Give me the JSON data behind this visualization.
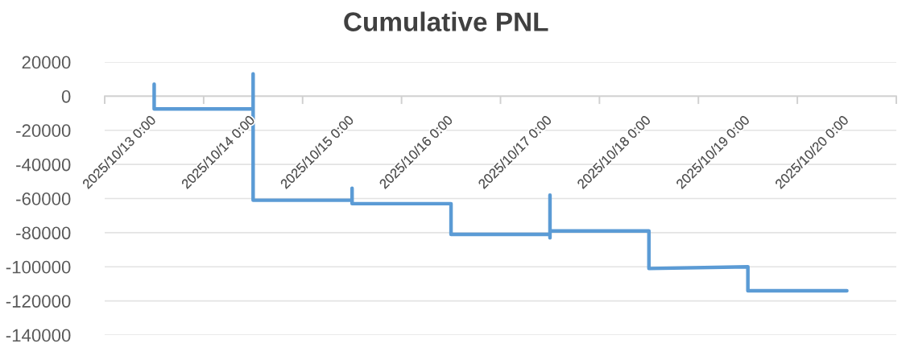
{
  "chart_data": {
    "type": "line",
    "title": "Cumulative PNL",
    "x": [
      "2025-10-13T00:00",
      "2025-10-13T00:00",
      "2025-10-14T00:00",
      "2025-10-14T00:00",
      "2025-10-14T00:00",
      "2025-10-15T00:00",
      "2025-10-15T00:00",
      "2025-10-15T00:00",
      "2025-10-16T00:00",
      "2025-10-16T00:00",
      "2025-10-17T00:00",
      "2025-10-17T00:00",
      "2025-10-17T00:00",
      "2025-10-17T00:00",
      "2025-10-18T00:00",
      "2025-10-18T00:00",
      "2025-10-19T00:00",
      "2025-10-19T00:00",
      "2025-10-20T00:00"
    ],
    "values": [
      7000,
      -7500,
      -7500,
      13000,
      -61000,
      -61000,
      -54000,
      -63000,
      -63000,
      -81000,
      -81000,
      -83000,
      -58000,
      -79000,
      -79000,
      -101000,
      -100000,
      -114000,
      -114000
    ],
    "color": "#5b9bd5",
    "xlim": [
      "2025-10-12T12:00",
      "2025-10-20T12:00"
    ],
    "xticks": [
      {
        "value": "2025-10-12T12:00",
        "label": null
      },
      {
        "value": "2025-10-13T00:00",
        "label": "2025/10/13 0:00"
      },
      {
        "value": "2025-10-13T12:00",
        "label": null
      },
      {
        "value": "2025-10-14T00:00",
        "label": "2025/10/14 0:00"
      },
      {
        "value": "2025-10-14T12:00",
        "label": null
      },
      {
        "value": "2025-10-15T00:00",
        "label": "2025/10/15 0:00"
      },
      {
        "value": "2025-10-15T12:00",
        "label": null
      },
      {
        "value": "2025-10-16T00:00",
        "label": "2025/10/16 0:00"
      },
      {
        "value": "2025-10-16T12:00",
        "label": null
      },
      {
        "value": "2025-10-17T00:00",
        "label": "2025/10/17 0:00"
      },
      {
        "value": "2025-10-17T12:00",
        "label": null
      },
      {
        "value": "2025-10-18T00:00",
        "label": "2025/10/18 0:00"
      },
      {
        "value": "2025-10-18T12:00",
        "label": null
      },
      {
        "value": "2025-10-19T00:00",
        "label": "2025/10/19 0:00"
      },
      {
        "value": "2025-10-19T12:00",
        "label": null
      },
      {
        "value": "2025-10-20T00:00",
        "label": "2025/10/20 0:00"
      },
      {
        "value": "2025-10-20T12:00",
        "label": null
      }
    ],
    "ylim": [
      -140000,
      20000
    ],
    "yticks": [
      -140000,
      -120000,
      -100000,
      -80000,
      -60000,
      -40000,
      -20000,
      0,
      20000
    ],
    "grid": "y"
  }
}
